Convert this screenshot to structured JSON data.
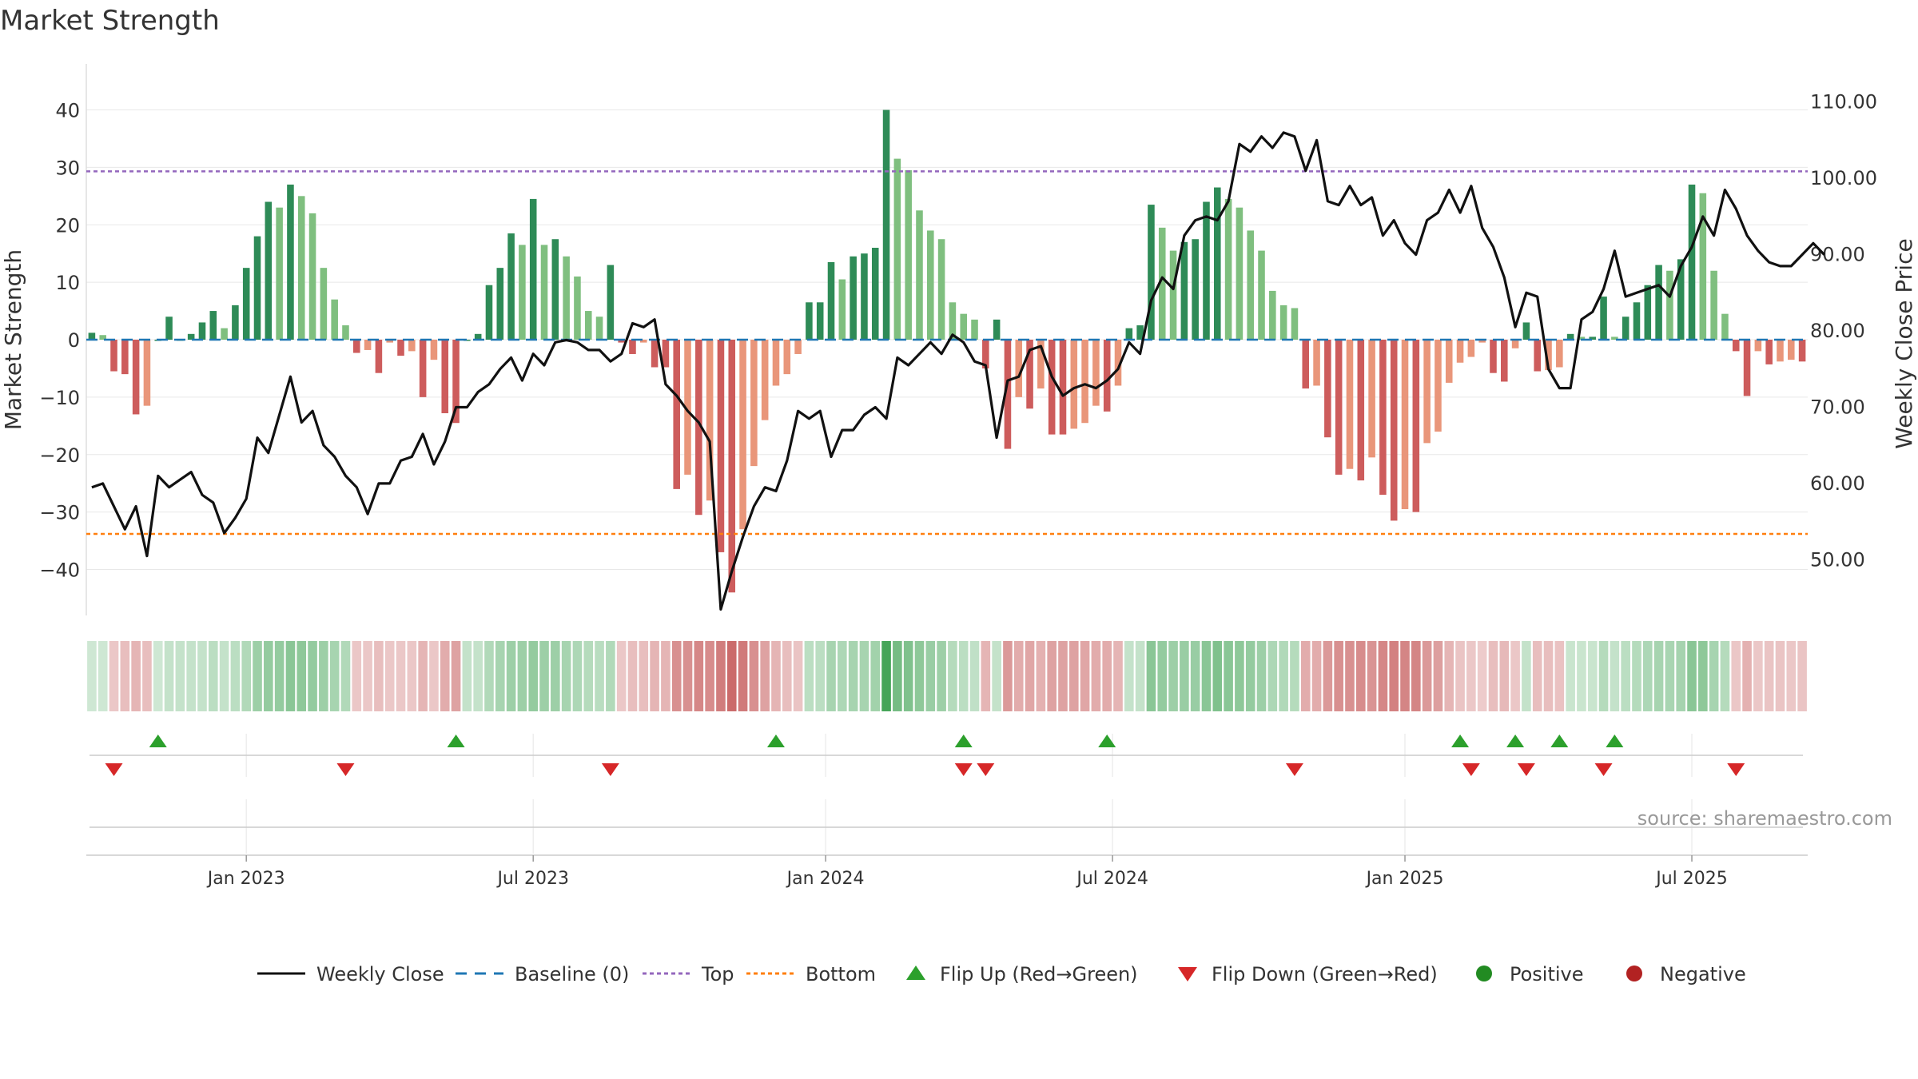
{
  "chart_data": {
    "type": "bar",
    "title": "Market Strength",
    "source": "source: sharemaestro.com",
    "ylabel_left": "Market Strength",
    "ylabel_right": "Weekly Close Price",
    "ylim_left": [
      -48,
      48
    ],
    "ylim_right": [
      42.7,
      115
    ],
    "left_ticks": [
      40,
      30,
      20,
      10,
      0,
      -10,
      -20,
      -30,
      -40
    ],
    "left_tick_labels": [
      "40",
      "30",
      "20",
      "10",
      "0",
      "−10",
      "−20",
      "−30",
      "−40"
    ],
    "right_ticks": [
      110,
      100,
      90,
      80,
      70,
      60,
      50
    ],
    "right_tick_labels": [
      "110.00",
      "100.00",
      "90.00",
      "80.00",
      "70.00",
      "60.00",
      "50.00"
    ],
    "top_line": 29.3,
    "bottom_line": -33.8,
    "x_labels": [
      {
        "label": "Jan 2023",
        "index": 14.5
      },
      {
        "label": "Jul 2023",
        "index": 40.5
      },
      {
        "label": "Jan 2024",
        "index": 67
      },
      {
        "label": "Jul 2024",
        "index": 93
      },
      {
        "label": "Jan 2025",
        "index": 119.5
      },
      {
        "label": "Jul 2025",
        "index": 145.5
      }
    ],
    "strength": [
      1.2,
      0.8,
      -5.5,
      -6,
      -13,
      -11.5,
      0,
      4,
      0,
      1,
      3,
      5,
      2,
      6,
      12.5,
      18,
      24,
      23,
      27,
      25,
      22,
      12.5,
      7,
      2.5,
      -2.3,
      -1.8,
      -5.8,
      -0.5,
      -2.8,
      -2,
      -10,
      -3.5,
      -12.8,
      -14.5,
      0,
      1,
      9.5,
      12.5,
      18.5,
      16.5,
      24.5,
      16.5,
      17.5,
      14.5,
      11,
      5,
      4,
      13,
      -0.5,
      -2.5,
      -0.5,
      -4.8,
      -4.8,
      -26,
      -23.5,
      -30.5,
      -28,
      -37,
      -44,
      -33,
      -22,
      -14,
      -8,
      -6,
      -2.5,
      6.5,
      6.5,
      13.5,
      10.5,
      14.5,
      15,
      16,
      40,
      31.5,
      29.5,
      22.5,
      19,
      17.5,
      6.5,
      4.5,
      3.5,
      -5,
      3.5,
      -19,
      -10,
      -12,
      -8.5,
      -16.5,
      -16.5,
      -15.5,
      -14.5,
      -11.5,
      -12.5,
      -8,
      2,
      2.5,
      23.5,
      19.5,
      15.5,
      17,
      17.5,
      24,
      26.5,
      24.5,
      23,
      19,
      15.5,
      8.5,
      6,
      5.5,
      -8.5,
      -8,
      -17,
      -23.5,
      -22.5,
      -24.5,
      -20.5,
      -27,
      -31.5,
      -29.5,
      -30,
      -18,
      -16,
      -7.5,
      -4,
      -3,
      -0.5,
      -5.8,
      -7.3,
      -1.5,
      3,
      -5.5,
      -5.3,
      -4.8,
      1,
      0.5,
      0.5,
      7.5,
      0.5,
      4,
      6.5,
      9.5,
      13,
      12,
      14,
      27,
      25.5,
      12,
      4.5,
      -2,
      -9.8,
      -2,
      -4.3,
      -3.8,
      -3.5,
      -3.8
    ],
    "weekly_close": [
      59.5,
      60,
      57,
      54,
      57,
      50.5,
      61,
      59.5,
      60.5,
      61.5,
      58.5,
      57.5,
      53.5,
      55.5,
      58,
      66,
      64,
      69,
      74,
      68,
      69.5,
      65,
      63.5,
      61,
      59.5,
      56,
      60,
      60,
      63,
      63.5,
      66.5,
      62.5,
      65.5,
      70,
      70,
      72,
      73,
      75,
      76.5,
      73.5,
      77,
      75.5,
      78.5,
      78.8,
      78.5,
      77.5,
      77.5,
      76,
      77,
      81,
      80.5,
      81.5,
      73,
      71.5,
      69.5,
      68,
      65.5,
      43.5,
      48.5,
      53,
      57,
      59.5,
      59,
      63,
      69.5,
      68.5,
      69.5,
      63.5,
      67,
      67,
      69,
      70,
      68.5,
      76.5,
      75.5,
      77,
      78.5,
      77,
      79.5,
      78.5,
      76,
      75.5,
      66,
      73.5,
      74,
      77.5,
      78,
      74,
      71.5,
      72.5,
      73,
      72.5,
      73.5,
      75,
      78.5,
      77,
      84,
      87,
      85.5,
      92.5,
      94.5,
      95,
      94.5,
      97,
      104.5,
      103.5,
      105.5,
      104,
      106,
      105.5,
      101,
      105,
      97,
      96.5,
      99,
      96.5,
      97.5,
      92.5,
      94.5,
      91.5,
      90,
      94.5,
      95.5,
      98.5,
      95.5,
      99,
      93.5,
      91,
      87,
      80.5,
      85,
      84.5,
      75,
      72.5,
      72.5,
      81.5,
      82.5,
      85.5,
      90.5,
      84.5,
      85,
      85.5,
      86,
      84.5,
      88.5,
      91,
      95,
      92.5,
      98.5,
      96,
      92.5,
      90.5,
      89,
      88.5,
      88.5,
      90,
      91.5,
      90
    ],
    "heat": [
      0.25,
      0.25,
      -0.3,
      -0.35,
      -0.4,
      -0.35,
      0.25,
      0.3,
      0.3,
      0.3,
      0.3,
      0.35,
      0.3,
      0.35,
      0.4,
      0.5,
      0.55,
      0.55,
      0.6,
      0.58,
      0.55,
      0.5,
      0.45,
      0.4,
      -0.3,
      -0.3,
      -0.35,
      -0.3,
      -0.3,
      -0.3,
      -0.4,
      -0.3,
      -0.45,
      -0.5,
      0.3,
      0.3,
      0.4,
      0.45,
      0.5,
      0.5,
      0.55,
      0.5,
      0.5,
      0.45,
      0.42,
      0.38,
      0.36,
      0.4,
      -0.3,
      -0.35,
      -0.35,
      -0.4,
      -0.4,
      -0.6,
      -0.6,
      -0.65,
      -0.62,
      -0.7,
      -0.8,
      -0.72,
      -0.6,
      -0.5,
      -0.4,
      -0.35,
      -0.32,
      0.35,
      0.35,
      0.45,
      0.42,
      0.45,
      0.45,
      0.48,
      0.95,
      0.7,
      0.65,
      0.58,
      0.52,
      0.5,
      0.38,
      0.35,
      0.32,
      -0.4,
      0.3,
      -0.55,
      -0.45,
      -0.48,
      -0.42,
      -0.5,
      -0.5,
      -0.5,
      -0.48,
      -0.45,
      -0.45,
      -0.4,
      0.3,
      0.3,
      0.6,
      0.55,
      0.5,
      0.52,
      0.52,
      0.6,
      0.65,
      0.6,
      0.58,
      0.55,
      0.5,
      0.42,
      0.4,
      0.38,
      -0.45,
      -0.45,
      -0.55,
      -0.6,
      -0.6,
      -0.62,
      -0.58,
      -0.65,
      -0.68,
      -0.66,
      -0.66,
      -0.55,
      -0.52,
      -0.4,
      -0.32,
      -0.3,
      -0.28,
      -0.35,
      -0.38,
      -0.3,
      0.3,
      -0.35,
      -0.35,
      -0.33,
      0.28,
      0.28,
      0.28,
      0.38,
      0.3,
      0.35,
      0.38,
      0.42,
      0.45,
      0.44,
      0.46,
      0.6,
      0.58,
      0.45,
      0.38,
      -0.3,
      -0.42,
      -0.3,
      -0.32,
      -0.32,
      -0.3,
      -0.32
    ],
    "flip_up": [
      6.5,
      33.5,
      62.5,
      79.5,
      92.5,
      124.5,
      129.5,
      133.5,
      138.5
    ],
    "flip_down": [
      2.5,
      23.5,
      47.5,
      79.5,
      81.5,
      109.5,
      125.5,
      130.5,
      137.5,
      149.5
    ],
    "legend": [
      {
        "key": "weekly_close",
        "label": "Weekly Close"
      },
      {
        "key": "baseline",
        "label": "Baseline (0)"
      },
      {
        "key": "top",
        "label": "Top"
      },
      {
        "key": "bottom",
        "label": "Bottom"
      },
      {
        "key": "flip_up",
        "label": "Flip Up (Red→Green)"
      },
      {
        "key": "flip_down",
        "label": "Flip Down (Green→Red)"
      },
      {
        "key": "positive",
        "label": "Positive"
      },
      {
        "key": "negative",
        "label": "Negative"
      }
    ],
    "colors": {
      "pos_dark": "#2e8b57",
      "pos_light": "#7fbf7f",
      "neg_dark": "#cd5c5c",
      "neg_light": "#e9967a",
      "close_line": "#111111",
      "baseline": "#1f77b4",
      "top_line": "#9467bd",
      "bottom_line": "#ff7f0e",
      "flip_up": "#2ca02c",
      "flip_down": "#d62728",
      "positive_dot": "#228b22",
      "negative_dot": "#b22222"
    }
  }
}
